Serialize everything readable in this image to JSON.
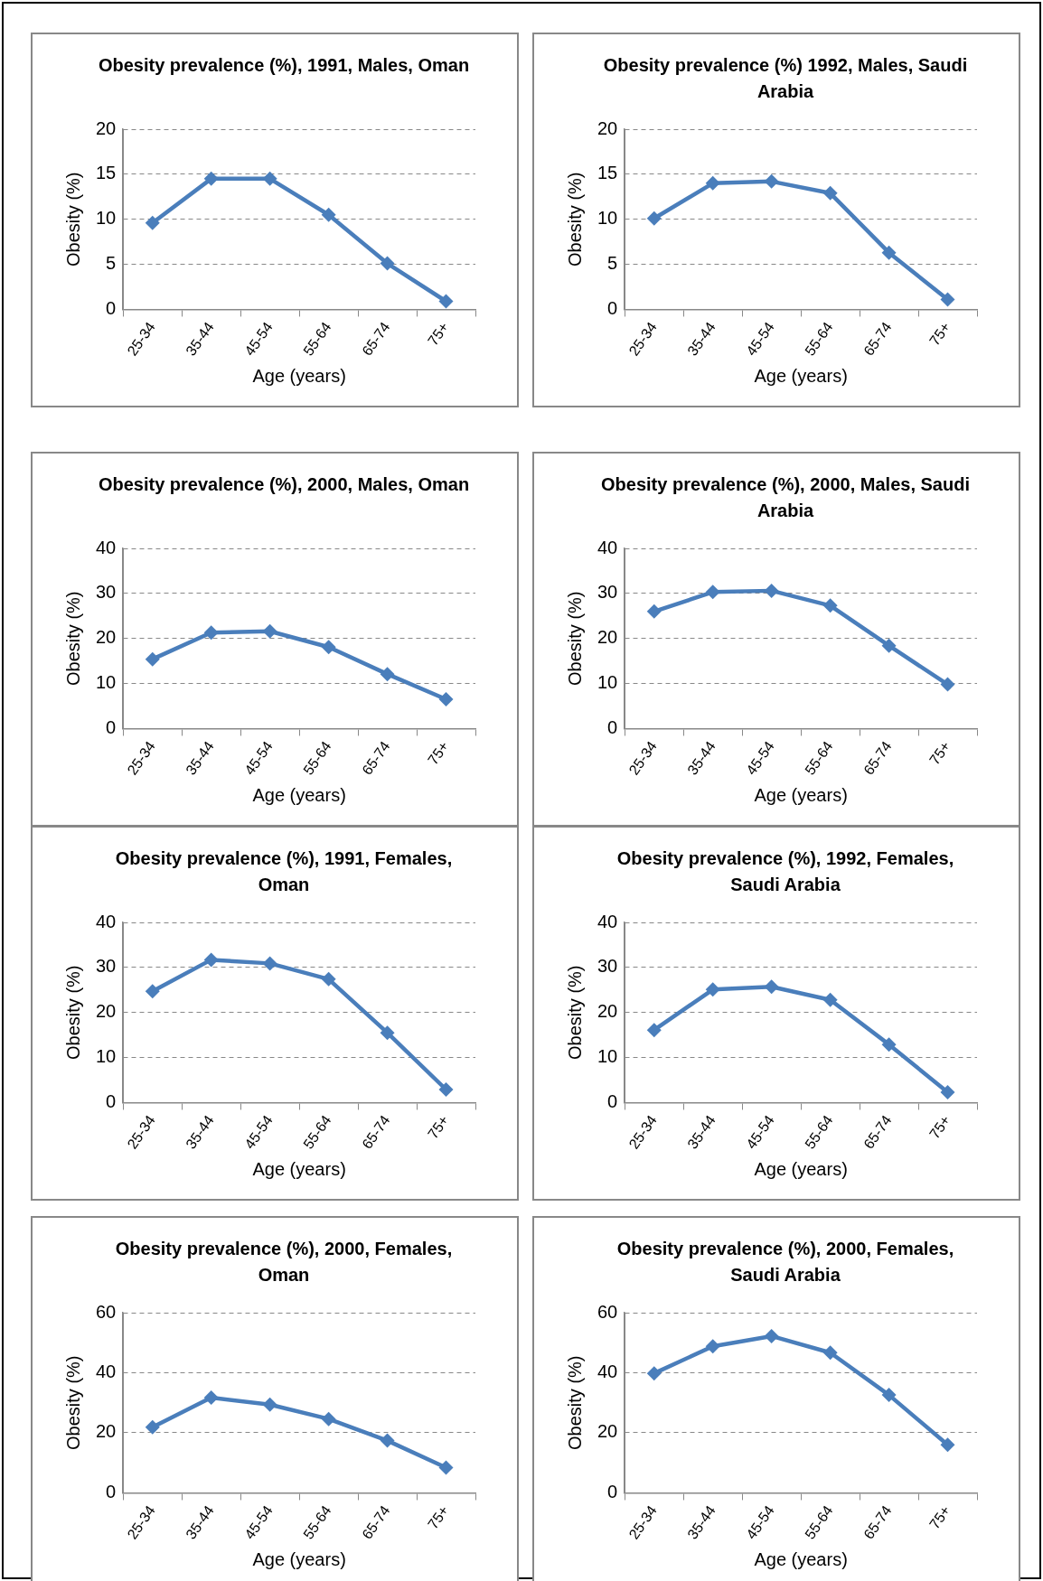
{
  "chart_data": [
    {
      "type": "line",
      "title": "Obesity prevalence (%), 1991, Males, Oman",
      "xlabel": "Age (years)",
      "ylabel": "Obesity (%)",
      "categories": [
        "25-34",
        "35-44",
        "45-54",
        "55-64",
        "65-74",
        "75+"
      ],
      "series": [
        {
          "color": "#4a7ebb",
          "values": [
            9.6,
            14.5,
            14.5,
            10.5,
            5.1,
            0.9
          ]
        }
      ],
      "ylim": [
        0,
        20
      ],
      "yticks": [
        0,
        5,
        10,
        15,
        20
      ],
      "grid": "y",
      "marker": "diamond",
      "line_style": "solid"
    },
    {
      "type": "line",
      "title": "Obesity prevalence (%) 1992, Males, Saudi Arabia",
      "xlabel": "Age (years)",
      "ylabel": "Obesity (%)",
      "categories": [
        "25-34",
        "35-44",
        "45-54",
        "55-64",
        "65-74",
        "75+"
      ],
      "series": [
        {
          "color": "#4a7ebb",
          "values": [
            10.1,
            14,
            14.2,
            12.9,
            6.3,
            1.1
          ]
        }
      ],
      "ylim": [
        0,
        20
      ],
      "yticks": [
        0,
        5,
        10,
        15,
        20
      ],
      "grid": "y",
      "marker": "diamond",
      "line_style": "solid"
    },
    {
      "type": "line",
      "title": "Obesity prevalence (%), 2000, Males, Oman",
      "xlabel": "Age (years)",
      "ylabel": "Obesity (%)",
      "categories": [
        "25-34",
        "35-44",
        "45-54",
        "55-64",
        "65-74",
        "75+"
      ],
      "series": [
        {
          "color": "#4a7ebb",
          "values": [
            15.4,
            21.3,
            21.6,
            18.1,
            12.1,
            6.5
          ]
        }
      ],
      "ylim": [
        0,
        40
      ],
      "yticks": [
        0,
        10,
        20,
        30,
        40
      ],
      "grid": "y",
      "marker": "diamond",
      "line_style": "solid"
    },
    {
      "type": "line",
      "title": "Obesity prevalence (%), 2000, Males, Saudi Arabia",
      "xlabel": "Age (years)",
      "ylabel": "Obesity (%)",
      "categories": [
        "25-34",
        "35-44",
        "45-54",
        "55-64",
        "65-74",
        "75+"
      ],
      "series": [
        {
          "color": "#4a7ebb",
          "values": [
            26,
            30.3,
            30.6,
            27.3,
            18.4,
            9.8
          ]
        }
      ],
      "ylim": [
        0,
        40
      ],
      "yticks": [
        0,
        10,
        20,
        30,
        40
      ],
      "grid": "y",
      "marker": "diamond",
      "line_style": "solid"
    },
    {
      "type": "line",
      "title": "Obesity prevalence (%), 1991, Females, Oman",
      "xlabel": "Age (years)",
      "ylabel": "Obesity (%)",
      "categories": [
        "25-34",
        "35-44",
        "45-54",
        "55-64",
        "65-74",
        "75+"
      ],
      "series": [
        {
          "color": "#4a7ebb",
          "values": [
            24.7,
            31.7,
            30.9,
            27.4,
            15.5,
            2.9
          ]
        }
      ],
      "ylim": [
        0,
        40
      ],
      "yticks": [
        0,
        10,
        20,
        30,
        40
      ],
      "grid": "y",
      "marker": "diamond",
      "line_style": "solid"
    },
    {
      "type": "line",
      "title": "Obesity prevalence (%), 1992, Females, Saudi Arabia",
      "xlabel": "Age (years)",
      "ylabel": "Obesity (%)",
      "categories": [
        "25-34",
        "35-44",
        "45-54",
        "55-64",
        "65-74",
        "75+"
      ],
      "series": [
        {
          "color": "#4a7ebb",
          "values": [
            16.1,
            25.1,
            25.7,
            22.8,
            12.9,
            2.3
          ]
        }
      ],
      "ylim": [
        0,
        40
      ],
      "yticks": [
        0,
        10,
        20,
        30,
        40
      ],
      "grid": "y",
      "marker": "diamond",
      "line_style": "solid"
    },
    {
      "type": "line",
      "title": "Obesity prevalence (%), 2000, Females, Oman",
      "xlabel": "Age (years)",
      "ylabel": "Obesity (%)",
      "categories": [
        "25-34",
        "35-44",
        "45-54",
        "55-64",
        "65-74",
        "75+"
      ],
      "series": [
        {
          "color": "#4a7ebb",
          "values": [
            21.9,
            31.7,
            29.4,
            24.6,
            17.4,
            8.4
          ]
        }
      ],
      "ylim": [
        0,
        60
      ],
      "yticks": [
        0,
        20,
        40,
        60
      ],
      "grid": "y",
      "marker": "diamond",
      "line_style": "solid"
    },
    {
      "type": "line",
      "title": "Obesity prevalence (%), 2000, Females, Saudi Arabia",
      "xlabel": "Age (years)",
      "ylabel": "Obesity (%)",
      "categories": [
        "25-34",
        "35-44",
        "45-54",
        "55-64",
        "65-74",
        "75+"
      ],
      "series": [
        {
          "color": "#4a7ebb",
          "values": [
            39.8,
            48.8,
            52.2,
            46.7,
            32.6,
            16
          ]
        }
      ],
      "ylim": [
        0,
        60
      ],
      "yticks": [
        0,
        20,
        40,
        60
      ],
      "grid": "y",
      "marker": "diamond",
      "line_style": "solid"
    }
  ]
}
